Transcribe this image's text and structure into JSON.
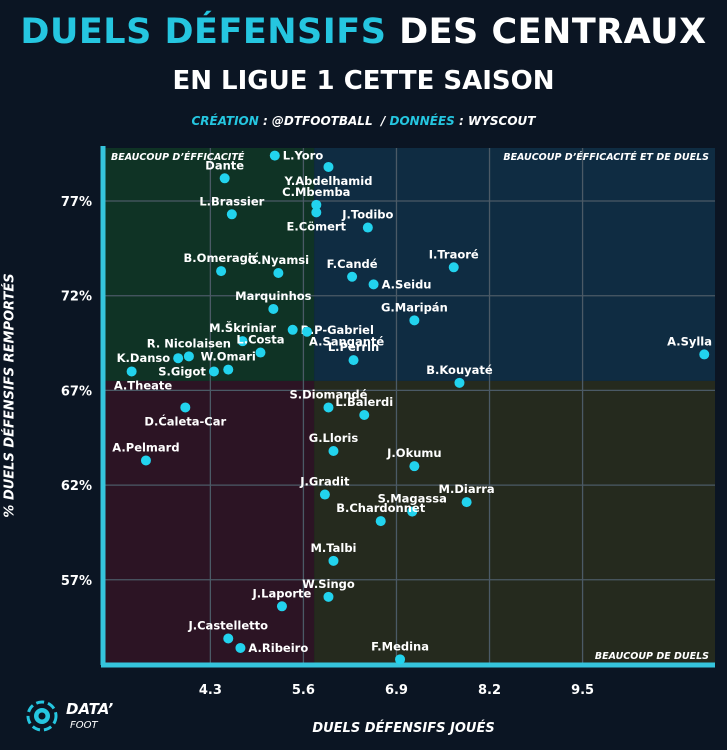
{
  "header": {
    "title_accent": "DUELS DÉFENSIFS",
    "title_rest": "DES CENTRAUX",
    "subtitle": "EN LIGUE 1 CETTE SAISON",
    "credit_key1": "CRÉATION",
    "credit_val1": " : @DTFOOTBALL  / ",
    "credit_key2": "DONNÉES",
    "credit_val2": " : WYSCOUT"
  },
  "logo": {
    "name": "DATA’",
    "sub": "FOOT"
  },
  "colors": {
    "point": "#22d3ee",
    "axis": "#35c4dc",
    "q_top_left": "#0f3325",
    "q_top_right": "#0f2c42",
    "q_bottom_left": "#2c1424",
    "q_bottom_right": "#252a1e"
  },
  "chart_data": {
    "type": "scatter",
    "xlabel": "DUELS DÉFENSIFS JOUÉS",
    "ylabel": "% DUELS DÉFENSIFS REMPORTÉS",
    "xlim": [
      2.8,
      11.35
    ],
    "ylim": [
      52.5,
      79.8
    ],
    "xticks": [
      4.3,
      5.6,
      6.9,
      8.2,
      9.5
    ],
    "xtick_labels": [
      "4.3",
      "5.6",
      "6.9",
      "8.2",
      "9.5"
    ],
    "yticks": [
      57,
      62,
      67,
      72,
      77
    ],
    "ytick_labels": [
      "57%",
      "62%",
      "67%",
      "72%",
      "77%"
    ],
    "x_split": 5.75,
    "y_split": 67.5,
    "quadrant_labels": {
      "top_left": "BEAUCOUP D’ÉFFICACITÉ",
      "top_right": "BEAUCOUP D’ÉFFICACITÉ ET DE DUELS",
      "bottom_right": "BEAUCOUP DE DUELS"
    },
    "points": [
      {
        "name": "L.Yoro",
        "x": 5.2,
        "y": 79.4,
        "pos": "r"
      },
      {
        "name": "Y.Abdelhamid",
        "x": 5.95,
        "y": 78.8,
        "pos": "b"
      },
      {
        "name": "Dante",
        "x": 4.5,
        "y": 78.2,
        "pos": "t"
      },
      {
        "name": "C.Mbemba",
        "x": 5.78,
        "y": 76.8,
        "pos": "t"
      },
      {
        "name": "L.Brassier",
        "x": 4.6,
        "y": 76.3,
        "pos": "t"
      },
      {
        "name": "E.Cömert",
        "x": 5.78,
        "y": 76.4,
        "pos": "b"
      },
      {
        "name": "J.Todibo",
        "x": 6.5,
        "y": 75.6,
        "pos": "t"
      },
      {
        "name": "B.Omeragić",
        "x": 4.45,
        "y": 73.3,
        "pos": "t"
      },
      {
        "name": "G.Nyamsi",
        "x": 5.25,
        "y": 73.2,
        "pos": "t"
      },
      {
        "name": "I.Traoré",
        "x": 7.7,
        "y": 73.5,
        "pos": "t"
      },
      {
        "name": "F.Candé",
        "x": 6.28,
        "y": 73.0,
        "pos": "t"
      },
      {
        "name": "A.Seidu",
        "x": 6.58,
        "y": 72.6,
        "pos": "r"
      },
      {
        "name": "Marquinhos",
        "x": 5.18,
        "y": 71.3,
        "pos": "t"
      },
      {
        "name": "G.Maripán",
        "x": 7.15,
        "y": 70.7,
        "pos": "t"
      },
      {
        "name": "R.P-Gabriel",
        "x": 5.45,
        "y": 70.2,
        "pos": "r"
      },
      {
        "name": "M.Škriniar",
        "x": 4.75,
        "y": 69.6,
        "pos": "t"
      },
      {
        "name": "A.Sanganté",
        "x": 5.65,
        "y": 70.1,
        "pos": "br"
      },
      {
        "name": "L.Costa",
        "x": 5.0,
        "y": 69.0,
        "pos": "t"
      },
      {
        "name": "R. Nicolaisen",
        "x": 4.0,
        "y": 68.8,
        "pos": "t"
      },
      {
        "name": "K.Danso",
        "x": 3.85,
        "y": 68.7,
        "pos": "l"
      },
      {
        "name": "W.Omari",
        "x": 4.55,
        "y": 68.1,
        "pos": "t"
      },
      {
        "name": "L.Perrin",
        "x": 6.3,
        "y": 68.6,
        "pos": "t"
      },
      {
        "name": "A.Sylla",
        "x": 11.2,
        "y": 68.9,
        "pos": "t"
      },
      {
        "name": "S.Gigot",
        "x": 4.35,
        "y": 68.0,
        "pos": "l"
      },
      {
        "name": "A.Theate",
        "x": 3.2,
        "y": 68.0,
        "pos": "b"
      },
      {
        "name": "B.Kouyaté",
        "x": 7.78,
        "y": 67.4,
        "pos": "t"
      },
      {
        "name": "S.Diomandé",
        "x": 5.95,
        "y": 66.1,
        "pos": "t"
      },
      {
        "name": "L.Balerdi",
        "x": 6.45,
        "y": 65.7,
        "pos": "t"
      },
      {
        "name": "D.Ćaleta-Car",
        "x": 3.95,
        "y": 66.1,
        "pos": "b"
      },
      {
        "name": "G.Lloris",
        "x": 6.02,
        "y": 63.8,
        "pos": "t"
      },
      {
        "name": "A.Pelmard",
        "x": 3.4,
        "y": 63.3,
        "pos": "t"
      },
      {
        "name": "J.Okumu",
        "x": 7.15,
        "y": 63.0,
        "pos": "t"
      },
      {
        "name": "J.Gradit",
        "x": 5.9,
        "y": 61.5,
        "pos": "t"
      },
      {
        "name": "M.Diarra",
        "x": 7.88,
        "y": 61.1,
        "pos": "t"
      },
      {
        "name": "S.Magassa",
        "x": 7.12,
        "y": 60.6,
        "pos": "t"
      },
      {
        "name": "B.Chardonnet",
        "x": 6.68,
        "y": 60.1,
        "pos": "t"
      },
      {
        "name": "M.Talbi",
        "x": 6.02,
        "y": 58.0,
        "pos": "t"
      },
      {
        "name": "W.Singo",
        "x": 5.95,
        "y": 56.1,
        "pos": "t"
      },
      {
        "name": "J.Laporte",
        "x": 5.3,
        "y": 55.6,
        "pos": "t"
      },
      {
        "name": "J.Castelletto",
        "x": 4.55,
        "y": 53.9,
        "pos": "t"
      },
      {
        "name": "A.Ribeiro",
        "x": 4.72,
        "y": 53.4,
        "pos": "r"
      },
      {
        "name": "F.Medina",
        "x": 6.95,
        "y": 52.8,
        "pos": "t"
      }
    ]
  }
}
